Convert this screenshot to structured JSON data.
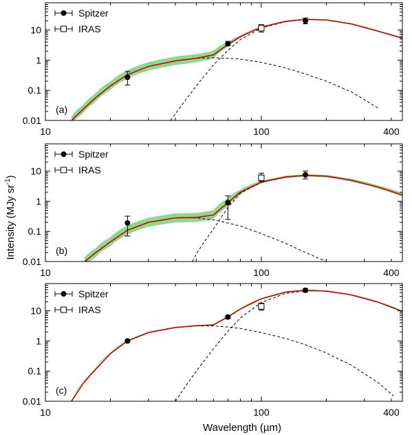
{
  "figure": {
    "xlabel": "Wavelength  (µm)",
    "ylabel_main": "Intensity (MJy sr",
    "ylabel_sup": "-1",
    "ylabel_close": ")",
    "colors": {
      "total_model": "#cc0000",
      "uncertainty_band": "#8fd88f",
      "components": "#000000",
      "frame": "#000000"
    }
  },
  "chart_data": [
    {
      "type": "line",
      "panel_label": "(a)",
      "x_scale": "log",
      "y_scale": "log",
      "xlim": [
        10,
        450
      ],
      "ylim": [
        0.01,
        80
      ],
      "x_ticks": [
        {
          "value": 10,
          "label": "10"
        },
        {
          "value": 100,
          "label": "100"
        },
        {
          "value": 400,
          "label": "400"
        }
      ],
      "y_ticks": [
        {
          "value": 0.01,
          "label": "0.01"
        },
        {
          "value": 0.1,
          "label": "0.1"
        },
        {
          "value": 1,
          "label": "1"
        },
        {
          "value": 10,
          "label": "10"
        }
      ],
      "legend": {
        "position": "top-left",
        "entries": [
          {
            "label": "Spitzer",
            "marker": "filled-circle"
          },
          {
            "label": "IRAS",
            "marker": "open-square"
          }
        ]
      },
      "points": [
        {
          "set": "Spitzer",
          "x": 24,
          "y": 0.27,
          "ylo": 0.15,
          "yhi": 0.42
        },
        {
          "set": "Spitzer",
          "x": 70,
          "y": 3.5,
          "ylo": 3.0,
          "yhi": 4.2
        },
        {
          "set": "Spitzer",
          "x": 160,
          "y": 20,
          "ylo": 16,
          "yhi": 25
        },
        {
          "set": "IRAS",
          "x": 100,
          "y": 11.5,
          "ylo": 8.5,
          "yhi": 15
        }
      ],
      "series": [
        {
          "role": "total-fit",
          "x": [
            13.2,
            15,
            17,
            20,
            24,
            30,
            40,
            50,
            60,
            70,
            80,
            100,
            130,
            160,
            200,
            260,
            350,
            450
          ],
          "y": [
            0.01,
            0.024,
            0.055,
            0.14,
            0.33,
            0.62,
            0.95,
            1.15,
            1.5,
            3.3,
            6.0,
            12.4,
            19.5,
            22.5,
            21.5,
            16.0,
            9.0,
            5.3
          ]
        },
        {
          "role": "warm-component",
          "x": [
            13.2,
            15,
            17,
            20,
            24,
            30,
            40,
            50,
            60,
            70,
            80,
            100,
            130,
            160,
            200,
            260,
            350
          ],
          "y": [
            0.01,
            0.024,
            0.055,
            0.14,
            0.33,
            0.62,
            0.95,
            1.15,
            1.2,
            1.16,
            1.08,
            0.85,
            0.55,
            0.35,
            0.2,
            0.09,
            0.025
          ]
        },
        {
          "role": "cold-component",
          "x": [
            38,
            42,
            50,
            60,
            70,
            80,
            100,
            130,
            160,
            200,
            260,
            350,
            450
          ],
          "y": [
            0.01,
            0.027,
            0.14,
            0.7,
            2.1,
            4.8,
            11.6,
            19.0,
            22.2,
            21.4,
            16.0,
            9.0,
            5.3
          ]
        },
        {
          "role": "uncertainty-halfwidth-dex",
          "x": [
            13.2,
            20,
            30,
            45,
            60,
            80,
            100,
            200,
            450
          ],
          "y": [
            0.14,
            0.14,
            0.14,
            0.14,
            0.13,
            0.04,
            0.02,
            0.02,
            0.02
          ]
        }
      ]
    },
    {
      "type": "line",
      "panel_label": "(b)",
      "x_scale": "log",
      "y_scale": "log",
      "xlim": [
        10,
        450
      ],
      "ylim": [
        0.01,
        80
      ],
      "x_ticks": [
        {
          "value": 10,
          "label": "10"
        },
        {
          "value": 100,
          "label": "100"
        },
        {
          "value": 400,
          "label": "400"
        }
      ],
      "y_ticks": [
        {
          "value": 0.01,
          "label": "0.01"
        },
        {
          "value": 0.1,
          "label": "0.1"
        },
        {
          "value": 1,
          "label": "1"
        },
        {
          "value": 10,
          "label": "10"
        }
      ],
      "legend": {
        "position": "top-left",
        "entries": [
          {
            "label": "Spitzer",
            "marker": "filled-circle"
          },
          {
            "label": "IRAS",
            "marker": "open-square"
          }
        ]
      },
      "points": [
        {
          "set": "Spitzer",
          "x": 24,
          "y": 0.19,
          "ylo": 0.07,
          "yhi": 0.32
        },
        {
          "set": "Spitzer",
          "x": 70,
          "y": 0.9,
          "ylo": 0.25,
          "yhi": 1.5
        },
        {
          "set": "Spitzer",
          "x": 160,
          "y": 7.5,
          "ylo": 5.5,
          "yhi": 10
        },
        {
          "set": "IRAS",
          "x": 100,
          "y": 6.0,
          "ylo": 4.5,
          "yhi": 8.5
        }
      ],
      "series": [
        {
          "role": "total-fit",
          "x": [
            15.2,
            17,
            20,
            24,
            30,
            40,
            50,
            60,
            70,
            80,
            100,
            130,
            160,
            200,
            260,
            350,
            450
          ],
          "y": [
            0.01,
            0.019,
            0.045,
            0.11,
            0.2,
            0.28,
            0.29,
            0.35,
            0.9,
            2.0,
            4.3,
            6.4,
            7.2,
            6.8,
            5.0,
            2.9,
            1.6
          ]
        },
        {
          "role": "warm-component",
          "x": [
            15.2,
            17,
            20,
            24,
            30,
            40,
            50,
            60,
            70,
            80,
            100,
            130,
            160,
            200,
            230
          ],
          "y": [
            0.01,
            0.019,
            0.045,
            0.11,
            0.2,
            0.28,
            0.28,
            0.24,
            0.19,
            0.15,
            0.085,
            0.04,
            0.02,
            0.01,
            0.006
          ]
        },
        {
          "role": "cold-component",
          "x": [
            48,
            50,
            55,
            60,
            70,
            80,
            100,
            130,
            160,
            200,
            260,
            350,
            450
          ],
          "y": [
            0.01,
            0.018,
            0.05,
            0.12,
            0.62,
            1.85,
            4.2,
            6.3,
            7.2,
            6.8,
            5.0,
            2.9,
            1.6
          ]
        },
        {
          "role": "uncertainty-halfwidth-dex",
          "x": [
            15.2,
            20,
            30,
            45,
            60,
            70,
            80,
            100,
            200,
            450
          ],
          "y": [
            0.15,
            0.15,
            0.15,
            0.15,
            0.15,
            0.14,
            0.08,
            0.04,
            0.04,
            0.06
          ]
        }
      ]
    },
    {
      "type": "line",
      "panel_label": "(c)",
      "x_scale": "log",
      "y_scale": "log",
      "xlim": [
        10,
        450
      ],
      "ylim": [
        0.01,
        80
      ],
      "x_ticks": [
        {
          "value": 10,
          "label": "10"
        },
        {
          "value": 100,
          "label": "100"
        },
        {
          "value": 400,
          "label": "400"
        }
      ],
      "y_ticks": [
        {
          "value": 0.01,
          "label": "0.01"
        },
        {
          "value": 0.1,
          "label": "0.1"
        },
        {
          "value": 1,
          "label": "1"
        },
        {
          "value": 10,
          "label": "10"
        }
      ],
      "legend": {
        "position": "top-left",
        "entries": [
          {
            "label": "Spitzer",
            "marker": "filled-circle"
          },
          {
            "label": "IRAS",
            "marker": "open-square"
          }
        ]
      },
      "points": [
        {
          "set": "Spitzer",
          "x": 24,
          "y": 1.0,
          "ylo": 0.9,
          "yhi": 1.1
        },
        {
          "set": "Spitzer",
          "x": 70,
          "y": 6.2,
          "ylo": 5.5,
          "yhi": 7.0
        },
        {
          "set": "Spitzer",
          "x": 160,
          "y": 48,
          "ylo": 42,
          "yhi": 55
        },
        {
          "set": "IRAS",
          "x": 100,
          "y": 14,
          "ylo": 10.5,
          "yhi": 18
        }
      ],
      "series": [
        {
          "role": "total-fit",
          "x": [
            13.2,
            15,
            17,
            20,
            24,
            30,
            40,
            50,
            60,
            70,
            80,
            100,
            130,
            160,
            200,
            260,
            350,
            450
          ],
          "y": [
            0.01,
            0.04,
            0.11,
            0.38,
            1.0,
            1.9,
            2.8,
            3.2,
            3.4,
            6.2,
            11.5,
            25,
            42,
            48,
            45,
            34,
            19,
            9.5
          ]
        },
        {
          "role": "warm-component",
          "x": [
            13.2,
            15,
            17,
            20,
            24,
            30,
            40,
            50,
            60,
            70,
            80,
            100,
            130,
            160,
            200,
            260,
            350,
            410
          ],
          "y": [
            0.01,
            0.04,
            0.11,
            0.38,
            1.0,
            1.9,
            2.8,
            3.15,
            3.15,
            2.9,
            2.6,
            1.9,
            1.2,
            0.75,
            0.4,
            0.16,
            0.04,
            0.015
          ]
        },
        {
          "role": "cold-component",
          "x": [
            40,
            45,
            50,
            60,
            70,
            80,
            100,
            130,
            160,
            200,
            260,
            350,
            450
          ],
          "y": [
            0.01,
            0.035,
            0.1,
            0.55,
            2.1,
            5.8,
            19,
            38,
            46.5,
            44.5,
            34,
            19,
            9.5
          ]
        },
        {
          "role": "uncertainty-halfwidth-dex",
          "x": [
            13.2,
            450
          ],
          "y": [
            0.02,
            0.02
          ]
        }
      ]
    }
  ]
}
